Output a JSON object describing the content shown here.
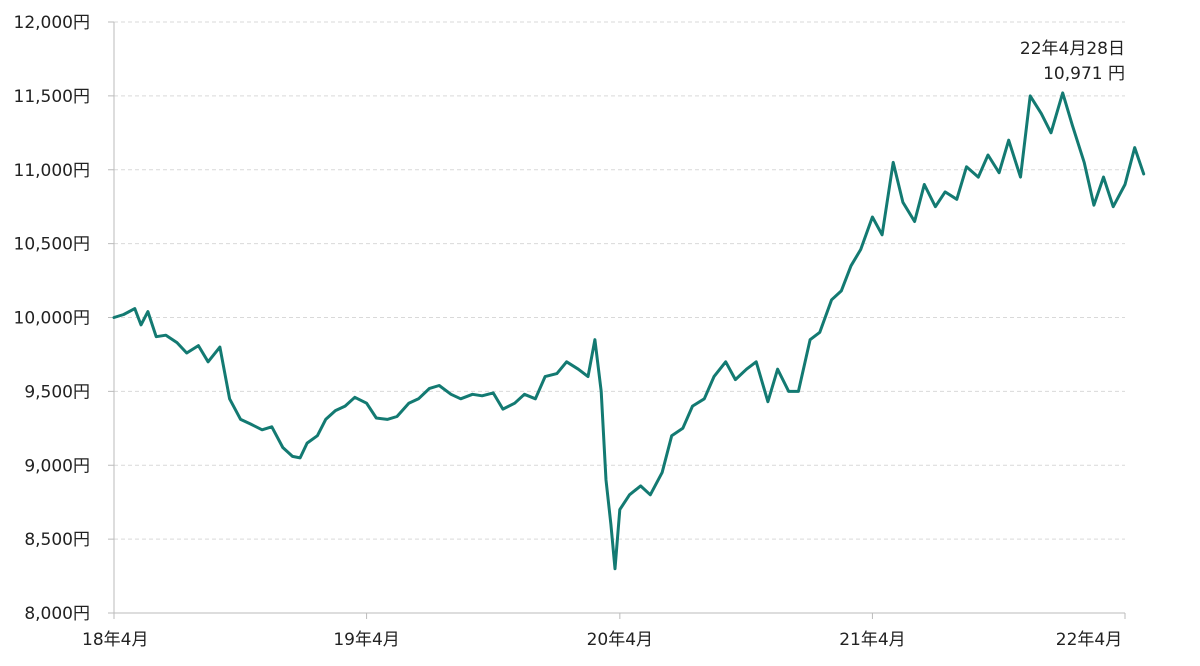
{
  "chart_data": {
    "type": "line",
    "title": "",
    "xlabel": "",
    "ylabel": "",
    "ylim": [
      8000,
      12000
    ],
    "y_ticks": [
      8000,
      8500,
      9000,
      9500,
      10000,
      10500,
      11000,
      11500,
      12000
    ],
    "y_tick_labels": [
      "8,000円",
      "8,500円",
      "9,000円",
      "9,500円",
      "10,000円",
      "10,500円",
      "11,000円",
      "11,500円",
      "12,000円"
    ],
    "x_range": [
      "2018-04",
      "2022-04"
    ],
    "x_ticks": [
      "2018-04",
      "2019-04",
      "2020-04",
      "2021-04",
      "2022-04"
    ],
    "x_tick_labels": [
      "18年4月",
      "19年4月",
      "20年4月",
      "21年4月",
      "22年4月"
    ],
    "grid": "horizontal dashed",
    "line_color": "#137a72",
    "annotation": {
      "date_label": "22年4月28日",
      "value_label": "10,971 円"
    },
    "series": [
      {
        "name": "",
        "x": [
          "2018-04-01",
          "2018-04-15",
          "2018-05-01",
          "2018-05-10",
          "2018-05-20",
          "2018-06-01",
          "2018-06-15",
          "2018-07-01",
          "2018-07-15",
          "2018-08-01",
          "2018-08-15",
          "2018-09-01",
          "2018-09-15",
          "2018-10-01",
          "2018-10-15",
          "2018-11-01",
          "2018-11-15",
          "2018-12-01",
          "2018-12-15",
          "2018-12-26",
          "2019-01-05",
          "2019-01-20",
          "2019-02-01",
          "2019-02-15",
          "2019-03-01",
          "2019-03-15",
          "2019-04-01",
          "2019-04-15",
          "2019-05-01",
          "2019-05-15",
          "2019-06-01",
          "2019-06-15",
          "2019-07-01",
          "2019-07-15",
          "2019-08-01",
          "2019-08-15",
          "2019-09-01",
          "2019-09-15",
          "2019-10-01",
          "2019-10-15",
          "2019-11-01",
          "2019-11-15",
          "2019-12-01",
          "2019-12-15",
          "2020-01-01",
          "2020-01-15",
          "2020-02-01",
          "2020-02-15",
          "2020-02-25",
          "2020-03-05",
          "2020-03-12",
          "2020-03-19",
          "2020-03-25",
          "2020-04-01",
          "2020-04-15",
          "2020-05-01",
          "2020-05-15",
          "2020-06-01",
          "2020-06-15",
          "2020-07-01",
          "2020-07-15",
          "2020-08-01",
          "2020-08-15",
          "2020-09-01",
          "2020-09-15",
          "2020-10-01",
          "2020-10-15",
          "2020-11-01",
          "2020-11-15",
          "2020-12-01",
          "2020-12-15",
          "2021-01-01",
          "2021-01-15",
          "2021-02-01",
          "2021-02-15",
          "2021-03-01",
          "2021-03-15",
          "2021-04-01",
          "2021-04-15",
          "2021-05-01",
          "2021-05-15",
          "2021-06-01",
          "2021-06-15",
          "2021-07-01",
          "2021-07-15",
          "2021-08-01",
          "2021-08-15",
          "2021-09-01",
          "2021-09-15",
          "2021-10-01",
          "2021-10-15",
          "2021-11-01",
          "2021-11-15",
          "2021-12-01",
          "2021-12-15",
          "2022-01-01",
          "2022-01-15",
          "2022-02-01",
          "2022-02-15",
          "2022-03-01",
          "2022-03-15",
          "2022-04-01",
          "2022-04-15",
          "2022-04-28"
        ],
        "values": [
          10000,
          10020,
          10060,
          9950,
          10040,
          9870,
          9880,
          9830,
          9760,
          9810,
          9700,
          9800,
          9450,
          9310,
          9280,
          9240,
          9260,
          9120,
          9060,
          9050,
          9150,
          9200,
          9310,
          9370,
          9400,
          9460,
          9420,
          9320,
          9310,
          9330,
          9420,
          9450,
          9520,
          9540,
          9480,
          9450,
          9480,
          9470,
          9490,
          9380,
          9420,
          9480,
          9450,
          9600,
          9620,
          9700,
          9650,
          9600,
          9850,
          9500,
          8900,
          8600,
          8300,
          8700,
          8800,
          8860,
          8800,
          8950,
          9200,
          9250,
          9400,
          9450,
          9600,
          9700,
          9580,
          9650,
          9700,
          9430,
          9650,
          9500,
          9500,
          9850,
          9900,
          10120,
          10180,
          10350,
          10460,
          10680,
          10560,
          11050,
          10780,
          10650,
          10900,
          10750,
          10850,
          10800,
          11020,
          10950,
          11100,
          10980,
          11200,
          10950,
          11500,
          11380,
          11250,
          11520,
          11300,
          11050,
          10760,
          10950,
          10750,
          10900,
          11150,
          10971
        ]
      }
    ]
  }
}
